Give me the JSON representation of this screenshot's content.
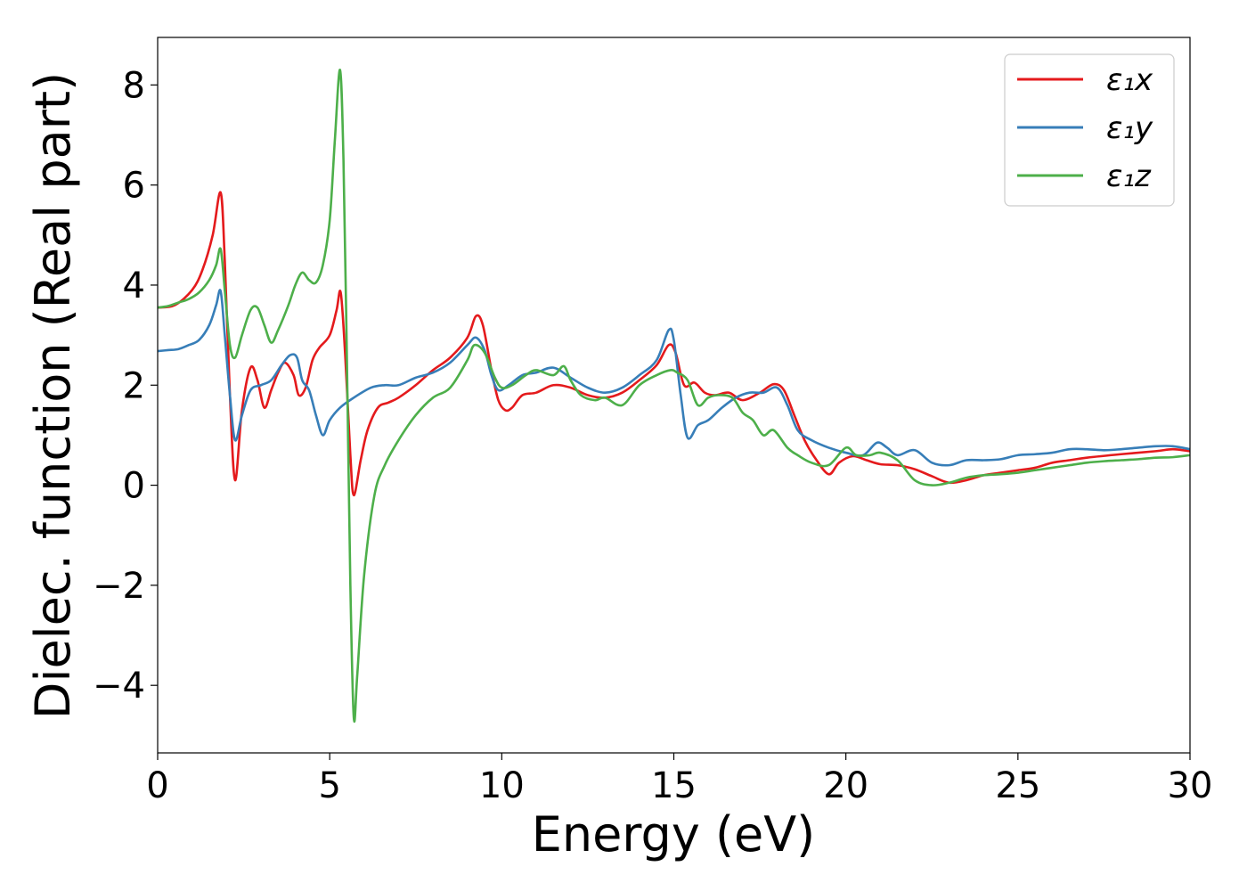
{
  "chart_data": {
    "type": "line",
    "title": "",
    "xlabel": "Energy (eV)",
    "ylabel": "Dielec. function (Real part)",
    "xlim": [
      0,
      30
    ],
    "ylim": [
      -5.35,
      8.95
    ],
    "xticks": [
      0,
      5,
      10,
      15,
      20,
      25,
      30
    ],
    "xtick_labels": [
      "0",
      "5",
      "10",
      "15",
      "20",
      "25",
      "30"
    ],
    "yticks": [
      -4,
      -2,
      0,
      2,
      4,
      6,
      8
    ],
    "ytick_labels": [
      "−4",
      "−2",
      "0",
      "2",
      "4",
      "6",
      "8"
    ],
    "grid": false,
    "legend_position": "top-right",
    "series": [
      {
        "name": "ε₁x",
        "color": "#e41a1c",
        "x": [
          0,
          0.5,
          1.0,
          1.3,
          1.6,
          1.83,
          1.95,
          2.1,
          2.25,
          2.45,
          2.7,
          2.9,
          3.1,
          3.3,
          3.5,
          3.7,
          3.95,
          4.1,
          4.3,
          4.5,
          4.7,
          5.0,
          5.2,
          5.32,
          5.45,
          5.6,
          5.7,
          5.9,
          6.1,
          6.4,
          6.7,
          7.0,
          7.5,
          8.0,
          8.5,
          9.0,
          9.25,
          9.45,
          9.7,
          9.9,
          10.1,
          10.3,
          10.6,
          11.0,
          11.5,
          12.0,
          12.5,
          13.0,
          13.5,
          14.0,
          14.5,
          14.85,
          15.05,
          15.3,
          15.6,
          15.9,
          16.2,
          16.6,
          17.0,
          17.5,
          17.9,
          18.2,
          18.5,
          18.8,
          19.1,
          19.5,
          19.8,
          20.2,
          20.6,
          21.0,
          21.5,
          22.0,
          22.5,
          23.0,
          23.5,
          24.0,
          24.5,
          25.0,
          25.5,
          26.0,
          26.5,
          27.0,
          28.0,
          29.0,
          29.5,
          30.0
        ],
        "values": [
          3.55,
          3.6,
          3.9,
          4.3,
          5.0,
          5.85,
          4.5,
          1.8,
          0.1,
          1.5,
          2.35,
          2.1,
          1.55,
          1.9,
          2.25,
          2.45,
          2.2,
          1.8,
          1.95,
          2.5,
          2.75,
          3.0,
          3.5,
          3.85,
          2.6,
          0.6,
          -0.2,
          0.5,
          1.1,
          1.55,
          1.65,
          1.75,
          2.0,
          2.3,
          2.55,
          2.95,
          3.38,
          3.2,
          2.3,
          1.7,
          1.5,
          1.55,
          1.8,
          1.85,
          2.0,
          1.95,
          1.8,
          1.75,
          1.85,
          2.1,
          2.4,
          2.8,
          2.65,
          2.0,
          2.05,
          1.85,
          1.8,
          1.85,
          1.7,
          1.85,
          2.02,
          1.9,
          1.4,
          0.9,
          0.55,
          0.22,
          0.45,
          0.58,
          0.5,
          0.42,
          0.4,
          0.32,
          0.18,
          0.05,
          0.1,
          0.2,
          0.25,
          0.3,
          0.35,
          0.45,
          0.5,
          0.55,
          0.62,
          0.68,
          0.72,
          0.68
        ]
      },
      {
        "name": "ε₁y",
        "color": "#377eb8",
        "x": [
          0,
          0.3,
          0.6,
          0.9,
          1.2,
          1.5,
          1.7,
          1.83,
          1.95,
          2.1,
          2.25,
          2.45,
          2.7,
          3.0,
          3.3,
          3.6,
          3.85,
          4.05,
          4.2,
          4.4,
          4.6,
          4.8,
          5.0,
          5.3,
          5.7,
          6.2,
          6.6,
          7.0,
          7.5,
          8.0,
          8.5,
          9.0,
          9.25,
          9.5,
          9.7,
          9.9,
          10.2,
          10.6,
          11.0,
          11.5,
          12.0,
          12.5,
          13.0,
          13.5,
          14.0,
          14.5,
          14.85,
          15.0,
          15.2,
          15.4,
          15.7,
          16.0,
          16.4,
          16.8,
          17.2,
          17.6,
          18.0,
          18.3,
          18.6,
          19.0,
          19.5,
          20.0,
          20.5,
          20.9,
          21.2,
          21.5,
          22.0,
          22.5,
          23.0,
          23.5,
          24.0,
          24.5,
          25.0,
          25.5,
          26.0,
          26.5,
          27.0,
          27.5,
          28.0,
          28.5,
          29.0,
          29.5,
          30.0
        ],
        "values": [
          2.68,
          2.7,
          2.72,
          2.8,
          2.9,
          3.2,
          3.6,
          3.88,
          3.0,
          1.8,
          0.9,
          1.4,
          1.9,
          2.0,
          2.1,
          2.4,
          2.6,
          2.55,
          2.1,
          1.9,
          1.4,
          1.0,
          1.3,
          1.55,
          1.75,
          1.95,
          2.0,
          2.0,
          2.15,
          2.25,
          2.45,
          2.8,
          2.95,
          2.7,
          2.2,
          1.9,
          2.0,
          2.2,
          2.25,
          2.35,
          2.15,
          1.95,
          1.85,
          1.95,
          2.2,
          2.5,
          3.1,
          2.9,
          1.8,
          0.95,
          1.2,
          1.3,
          1.55,
          1.75,
          1.85,
          1.85,
          1.95,
          1.6,
          1.1,
          0.9,
          0.75,
          0.65,
          0.6,
          0.85,
          0.75,
          0.6,
          0.7,
          0.45,
          0.4,
          0.5,
          0.5,
          0.52,
          0.6,
          0.62,
          0.65,
          0.72,
          0.72,
          0.7,
          0.72,
          0.75,
          0.78,
          0.78,
          0.72
        ]
      },
      {
        "name": "ε₁z",
        "color": "#4daf4a",
        "x": [
          0,
          0.3,
          0.6,
          0.9,
          1.2,
          1.5,
          1.7,
          1.83,
          1.95,
          2.1,
          2.25,
          2.45,
          2.7,
          2.9,
          3.1,
          3.3,
          3.5,
          3.8,
          4.0,
          4.2,
          4.4,
          4.6,
          4.8,
          5.0,
          5.15,
          5.3,
          5.4,
          5.5,
          5.6,
          5.7,
          5.8,
          6.0,
          6.3,
          6.6,
          7.0,
          7.5,
          8.0,
          8.5,
          9.0,
          9.2,
          9.5,
          9.8,
          10.0,
          10.3,
          10.7,
          11.0,
          11.5,
          11.8,
          12.0,
          12.3,
          12.7,
          13.0,
          13.5,
          14.0,
          14.5,
          14.9,
          15.1,
          15.4,
          15.7,
          16.0,
          16.3,
          16.7,
          17.0,
          17.3,
          17.6,
          17.9,
          18.3,
          18.6,
          19.0,
          19.5,
          20.0,
          20.3,
          20.7,
          21.0,
          21.5,
          22.0,
          22.5,
          23.0,
          23.5,
          24.0,
          24.5,
          25.0,
          25.5,
          26.0,
          26.5,
          27.0,
          27.5,
          28.0,
          28.5,
          29.0,
          29.5,
          30.0
        ],
        "values": [
          3.55,
          3.58,
          3.65,
          3.72,
          3.85,
          4.1,
          4.4,
          4.72,
          3.9,
          2.8,
          2.55,
          3.0,
          3.5,
          3.55,
          3.2,
          2.85,
          3.1,
          3.6,
          4.0,
          4.25,
          4.1,
          4.05,
          4.4,
          5.3,
          6.9,
          8.3,
          6.5,
          2.5,
          -2.0,
          -4.65,
          -3.8,
          -1.8,
          -0.2,
          0.4,
          0.9,
          1.4,
          1.75,
          1.95,
          2.5,
          2.8,
          2.65,
          2.15,
          1.95,
          2.0,
          2.2,
          2.3,
          2.2,
          2.38,
          2.1,
          1.8,
          1.7,
          1.75,
          1.6,
          2.0,
          2.2,
          2.3,
          2.25,
          2.1,
          1.6,
          1.75,
          1.8,
          1.75,
          1.45,
          1.3,
          1.0,
          1.1,
          0.75,
          0.6,
          0.45,
          0.4,
          0.75,
          0.6,
          0.6,
          0.65,
          0.5,
          0.1,
          0.0,
          0.05,
          0.15,
          0.2,
          0.22,
          0.25,
          0.3,
          0.35,
          0.4,
          0.45,
          0.48,
          0.5,
          0.52,
          0.55,
          0.56,
          0.6
        ]
      }
    ]
  }
}
